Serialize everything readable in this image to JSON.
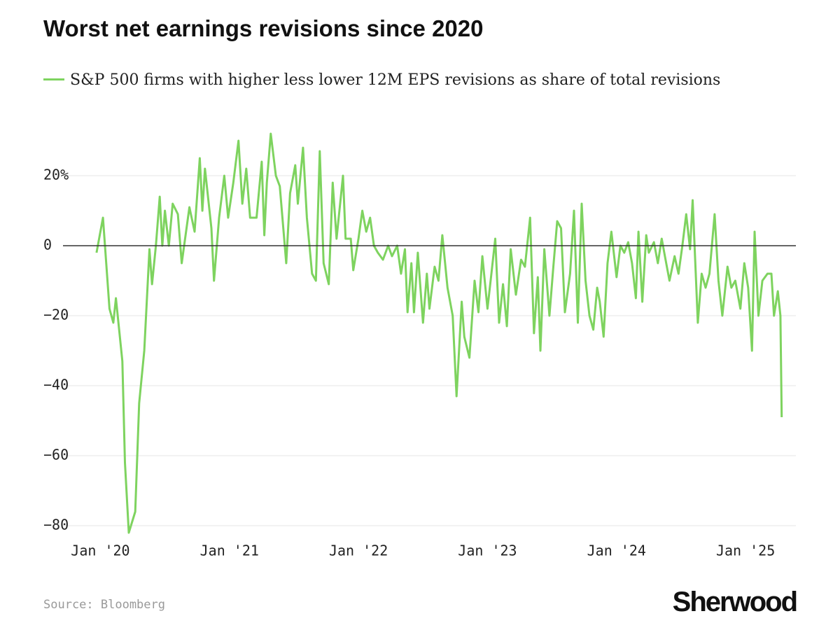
{
  "chart_data": {
    "type": "line",
    "title": "Worst net earnings revisions since 2020",
    "source": "Source: Bloomberg",
    "brand": "Sherwood",
    "grid": true,
    "xlim": [
      2019.71,
      2025.39
    ],
    "ylim": [
      -84,
      34
    ],
    "xticks": [
      {
        "value": 2020,
        "label": "Jan '20"
      },
      {
        "value": 2021,
        "label": "Jan '21"
      },
      {
        "value": 2022,
        "label": "Jan '22"
      },
      {
        "value": 2023,
        "label": "Jan '23"
      },
      {
        "value": 2024,
        "label": "Jan '24"
      },
      {
        "value": 2025,
        "label": "Jan '25"
      }
    ],
    "yticks": [
      {
        "value": 20,
        "label": "20%"
      },
      0,
      {
        "value": -20,
        "label": "−20"
      },
      {
        "value": -40,
        "label": "−40"
      },
      {
        "value": -60,
        "label": "−60"
      },
      {
        "value": -80,
        "label": "−80"
      }
    ],
    "x": [
      2019.97,
      2020.02,
      2020.07,
      2020.1,
      2020.12,
      2020.17,
      2020.19,
      2020.22,
      2020.27,
      2020.3,
      2020.34,
      2020.38,
      2020.4,
      2020.43,
      2020.46,
      2020.48,
      2020.5,
      2020.53,
      2020.56,
      2020.6,
      2020.63,
      2020.69,
      2020.73,
      2020.77,
      2020.79,
      2020.81,
      2020.86,
      2020.88,
      2020.92,
      2020.96,
      2020.99,
      2021.03,
      2021.07,
      2021.1,
      2021.13,
      2021.16,
      2021.21,
      2021.25,
      2021.27,
      2021.29,
      2021.32,
      2021.36,
      2021.39,
      2021.44,
      2021.47,
      2021.51,
      2021.53,
      2021.57,
      2021.6,
      2021.64,
      2021.67,
      2021.7,
      2021.73,
      2021.77,
      2021.8,
      2021.83,
      2021.88,
      2021.9,
      2021.94,
      2021.96,
      2022.0,
      2022.03,
      2022.06,
      2022.09,
      2022.12,
      2022.15,
      2022.19,
      2022.23,
      2022.26,
      2022.3,
      2022.33,
      2022.36,
      2022.38,
      2022.41,
      2022.43,
      2022.46,
      2022.5,
      2022.53,
      2022.55,
      2022.59,
      2022.62,
      2022.65,
      2022.69,
      2022.73,
      2022.76,
      2022.8,
      2022.82,
      2022.86,
      2022.9,
      2022.93,
      2022.96,
      2023.0,
      2023.03,
      2023.06,
      2023.09,
      2023.12,
      2023.15,
      2023.18,
      2023.22,
      2023.26,
      2023.29,
      2023.33,
      2023.36,
      2023.39,
      2023.41,
      2023.44,
      2023.48,
      2023.51,
      2023.54,
      2023.57,
      2023.6,
      2023.64,
      2023.67,
      2023.7,
      2023.73,
      2023.76,
      2023.79,
      2023.82,
      2023.85,
      2023.87,
      2023.9,
      2023.93,
      2023.96,
      2024.0,
      2024.03,
      2024.06,
      2024.09,
      2024.12,
      2024.15,
      2024.17,
      2024.2,
      2024.23,
      2024.25,
      2024.29,
      2024.32,
      2024.35,
      2024.38,
      2024.41,
      2024.45,
      2024.48,
      2024.51,
      2024.54,
      2024.57,
      2024.59,
      2024.63,
      2024.66,
      2024.69,
      2024.72,
      2024.76,
      2024.79,
      2024.82,
      2024.86,
      2024.89,
      2024.92,
      2024.96,
      2024.99,
      2025.02,
      2025.05,
      2025.07,
      2025.1,
      2025.13,
      2025.17,
      2025.2,
      2025.22,
      2025.25,
      2025.27,
      2025.28
    ],
    "series": [
      {
        "name": "S&P 500 firms with higher less lower 12M EPS revisions as share of total revisions",
        "color": "#7ed35f",
        "values": [
          -2,
          8,
          -18,
          -22,
          -15,
          -33,
          -62,
          -82,
          -76,
          -45,
          -30,
          -1,
          -11,
          0,
          14,
          0,
          10,
          0,
          12,
          9,
          -5,
          11,
          4,
          25,
          10,
          22,
          5,
          -10,
          8,
          20,
          8,
          18,
          30,
          12,
          22,
          8,
          8,
          24,
          3,
          18,
          32,
          20,
          17,
          -5,
          15,
          23,
          12,
          28,
          8,
          -8,
          -10,
          27,
          -5,
          -11,
          18,
          2,
          20,
          2,
          2,
          -7,
          2,
          10,
          4,
          8,
          0,
          -2,
          -4,
          0,
          -3,
          0,
          -8,
          -1,
          -19,
          -5,
          -19,
          -2,
          -22,
          -8,
          -18,
          -6,
          -10,
          3,
          -12,
          -20,
          -43,
          -16,
          -26,
          -32,
          -10,
          -19,
          -3,
          -18,
          -8,
          2,
          -22,
          -11,
          -23,
          -1,
          -14,
          -4,
          -6,
          8,
          -25,
          -9,
          -30,
          -1,
          -20,
          -6,
          7,
          5,
          -19,
          -8,
          10,
          -22,
          12,
          -10,
          -20,
          -24,
          -12,
          -16,
          -26,
          -5,
          4,
          -9,
          0,
          -2,
          1,
          -5,
          -15,
          4,
          -16,
          3,
          -2,
          1,
          -5,
          2,
          -4,
          -10,
          -3,
          -8,
          0,
          9,
          -1,
          13,
          -22,
          -8,
          -12,
          -8,
          9,
          -10,
          -20,
          -6,
          -12,
          -10,
          -18,
          -5,
          -12,
          -30,
          4,
          -20,
          -10,
          -8,
          -8,
          -20,
          -13,
          -20,
          -49
        ]
      }
    ]
  }
}
